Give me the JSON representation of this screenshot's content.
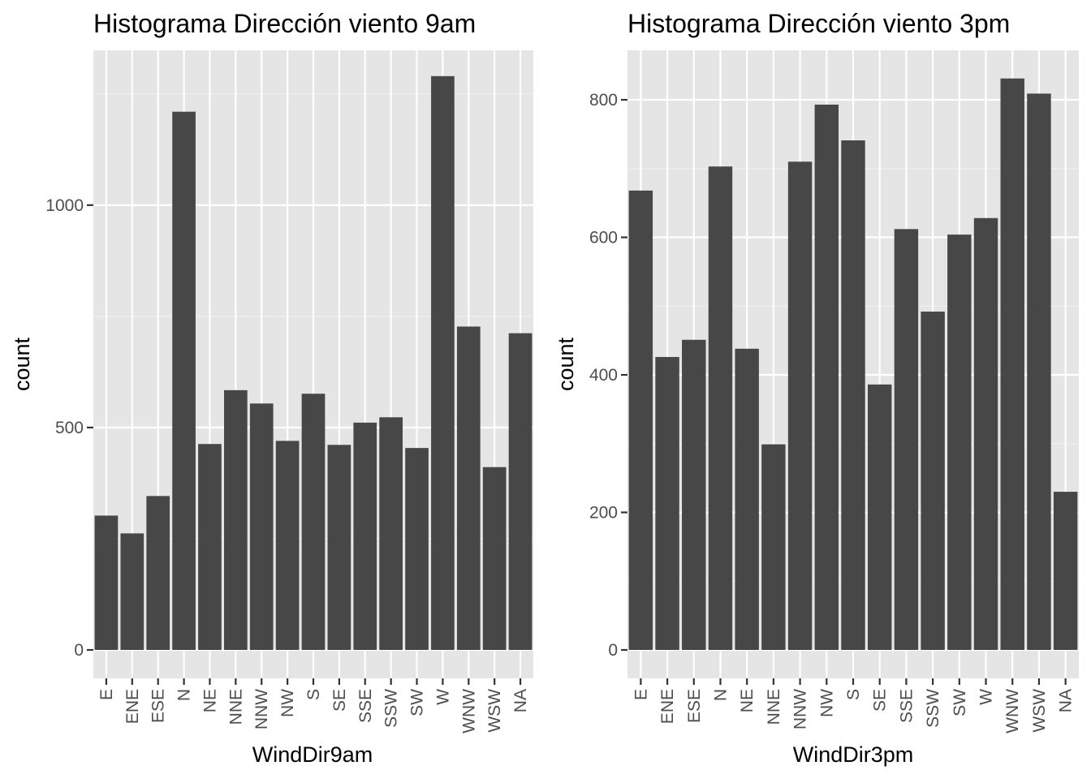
{
  "chart_data": [
    {
      "type": "bar",
      "title": "Histograma Dirección viento 9am",
      "xlabel": "WindDir9am",
      "ylabel": "count",
      "ylim": [
        0,
        1290
      ],
      "yticks": [
        0,
        500,
        1000
      ],
      "categories": [
        "E",
        "ENE",
        "ESE",
        "N",
        "NE",
        "NNE",
        "NNW",
        "NW",
        "S",
        "SE",
        "SSE",
        "SSW",
        "SW",
        "W",
        "WNW",
        "WSW",
        "NA"
      ],
      "values": [
        302,
        262,
        346,
        1210,
        463,
        584,
        554,
        470,
        576,
        461,
        511,
        523,
        454,
        1290,
        727,
        411,
        712
      ]
    },
    {
      "type": "bar",
      "title": "Histograma  Dirección viento 3pm",
      "xlabel": "WindDir3pm",
      "ylabel": "count",
      "ylim": [
        0,
        830
      ],
      "yticks": [
        0,
        200,
        400,
        600,
        800
      ],
      "categories": [
        "E",
        "ENE",
        "ESE",
        "N",
        "NE",
        "NNE",
        "NNW",
        "NW",
        "S",
        "SE",
        "SSE",
        "SSW",
        "SW",
        "W",
        "WNW",
        "WSW",
        "NA"
      ],
      "values": [
        668,
        426,
        451,
        703,
        438,
        299,
        710,
        793,
        741,
        386,
        612,
        492,
        604,
        628,
        831,
        809,
        230
      ]
    }
  ]
}
